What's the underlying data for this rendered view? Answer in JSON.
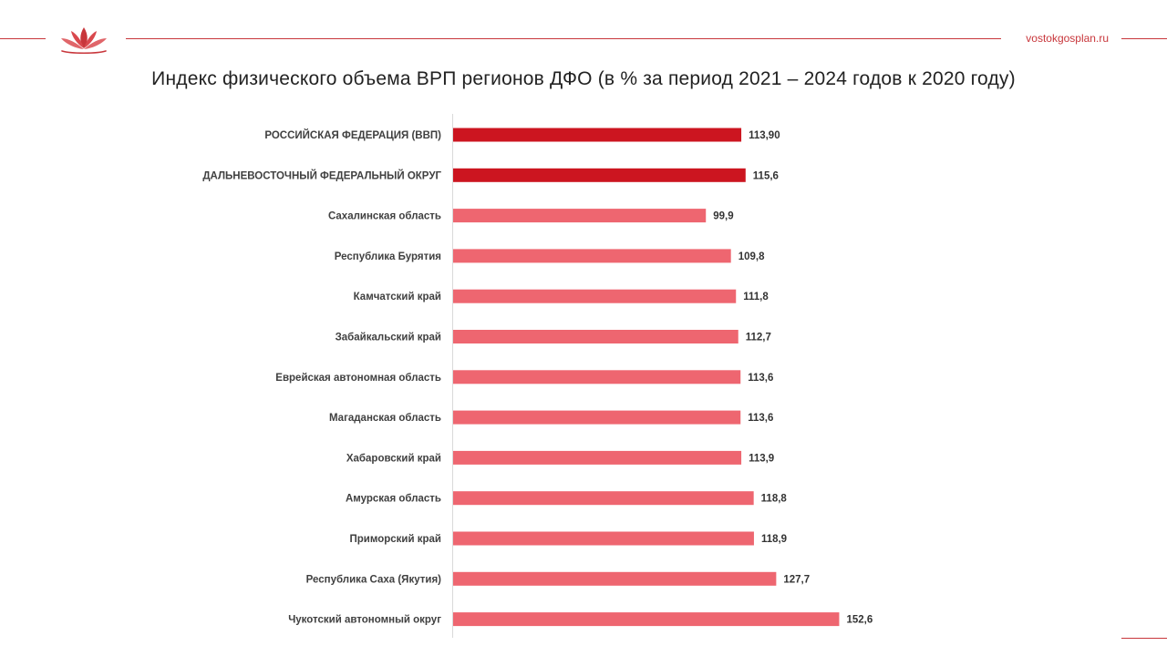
{
  "header": {
    "site": "vostokgosplan.ru",
    "logo": "lotus-logo"
  },
  "colors": {
    "accent": "#c8363b",
    "highlight_bar": "#cc1520",
    "region_bar": "#ee6670"
  },
  "chart_data": {
    "type": "bar",
    "orientation": "horizontal",
    "title": "Индекс физического объема ВРП регионов ДФО (в % за период 2021 – 2024 годов к 2020 году)",
    "xlabel": "",
    "ylabel": "",
    "xlim": [
      0,
      160
    ],
    "grid": false,
    "legend": "none",
    "categories": [
      "РОССИЙСКАЯ ФЕДЕРАЦИЯ (ВВП)",
      "ДАЛЬНЕВОСТОЧНЫЙ ФЕДЕРАЛЬНЫЙ ОКРУГ",
      "Сахалинская область",
      "Республика Бурятия",
      "Камчатский край",
      "Забайкальский край",
      "Еврейская автономная область",
      "Магаданская область",
      "Хабаровский край",
      "Амурская область",
      "Приморский край",
      "Республика Саха (Якутия)",
      "Чукотский автономный округ"
    ],
    "values": [
      113.9,
      115.6,
      99.9,
      109.8,
      111.8,
      112.7,
      113.6,
      113.6,
      113.9,
      118.8,
      118.9,
      127.7,
      152.6
    ],
    "value_labels": [
      "113,90",
      "115,6",
      "99,9",
      "109,8",
      "111,8",
      "112,7",
      "113,6",
      "113,6",
      "113,9",
      "118,8",
      "118,9",
      "127,7",
      "152,6"
    ],
    "highlighted": [
      true,
      true,
      false,
      false,
      false,
      false,
      false,
      false,
      false,
      false,
      false,
      false,
      false
    ]
  }
}
